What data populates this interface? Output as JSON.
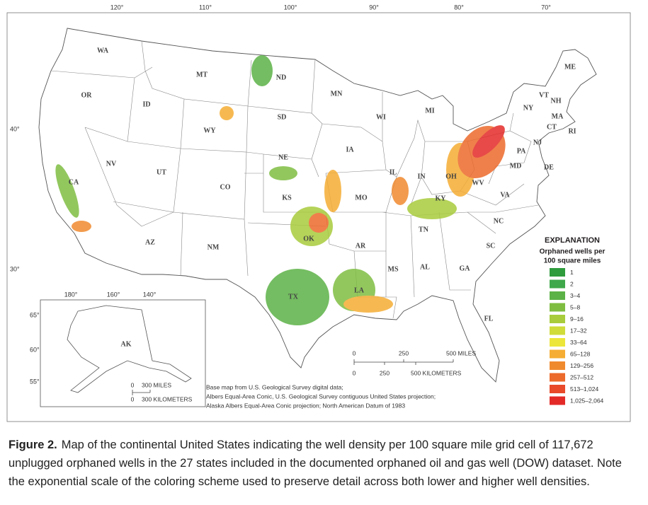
{
  "map": {
    "longitude_labels": [
      "120°",
      "110°",
      "100°",
      "90°",
      "80°",
      "70°"
    ],
    "latitude_labels": [
      "40°",
      "30°"
    ],
    "states": [
      "WA",
      "OR",
      "CA",
      "NV",
      "ID",
      "MT",
      "WY",
      "UT",
      "CO",
      "AZ",
      "NM",
      "ND",
      "SD",
      "NE",
      "KS",
      "OK",
      "TX",
      "MN",
      "IA",
      "MO",
      "AR",
      "LA",
      "WI",
      "IL",
      "MI",
      "IN",
      "OH",
      "KY",
      "TN",
      "MS",
      "AL",
      "GA",
      "FL",
      "SC",
      "NC",
      "VA",
      "WV",
      "PA",
      "NY",
      "MD",
      "DE",
      "NJ",
      "ME",
      "VT",
      "NH",
      "MA",
      "CT",
      "RI"
    ],
    "scale": {
      "miles": [
        "0",
        "250",
        "500 MILES"
      ],
      "kilometers": [
        "0",
        "250",
        "500 KILOMETERS"
      ]
    },
    "inset": {
      "label": "AK",
      "longitude_labels": [
        "180°",
        "160°",
        "140°"
      ],
      "latitude_labels": [
        "65°",
        "60°",
        "55°"
      ],
      "scale": {
        "miles": [
          "0",
          "300 MILES"
        ],
        "kilometers": [
          "0",
          "300 KILOMETERS"
        ]
      }
    },
    "credit": [
      "Base map from U.S. Geological Survey digital data;",
      "Albers Equal-Area Conic, U.S. Geological Survey contiguous United States projection;",
      "Alaska Albers Equal-Area Conic projection; North American Datum of 1983"
    ]
  },
  "legend": {
    "title": "EXPLANATION",
    "subtitle": [
      "Orphaned wells per",
      "100 square miles"
    ],
    "items": [
      {
        "label": "1",
        "color": "#2e9b3c"
      },
      {
        "label": "2",
        "color": "#3fa84a"
      },
      {
        "label": "3–4",
        "color": "#5cb246"
      },
      {
        "label": "5–8",
        "color": "#7fbd41"
      },
      {
        "label": "9–16",
        "color": "#a8cc3c"
      },
      {
        "label": "17–32",
        "color": "#d0dc3a"
      },
      {
        "label": "33–64",
        "color": "#ece63a"
      },
      {
        "label": "65–128",
        "color": "#f5ad33"
      },
      {
        "label": "129–256",
        "color": "#f08a2f"
      },
      {
        "label": "257–512",
        "color": "#ec6a2b"
      },
      {
        "label": "513–1,024",
        "color": "#e84a2a"
      },
      {
        "label": "1,025–2,064",
        "color": "#e32a27"
      }
    ]
  },
  "caption": {
    "label": "Figure 2.",
    "text": "Map of the continental United States indicating the well density per 100 square mile grid cell of 117,672 unplugged orphaned wells in the 27 states included in the documented orphaned oil and gas well (DOW) dataset. Note the exponential scale of the coloring scheme used to preserve detail across both lower and higher well densities."
  }
}
